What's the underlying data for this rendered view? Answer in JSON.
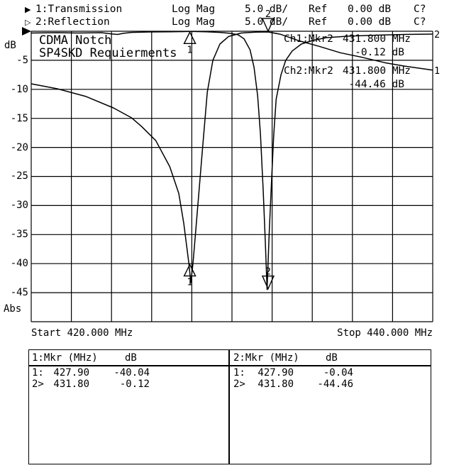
{
  "header": {
    "rows": [
      {
        "arrow": "▶",
        "label": "1:Transmission",
        "format": "Log Mag",
        "scale": "5.0 dB/",
        "ref_label": "Ref",
        "ref_value": "0.00 dB",
        "cal": "C?"
      },
      {
        "arrow": "▷",
        "label": "2:Reflection",
        "format": "Log Mag",
        "scale": "5.0 dB/",
        "ref_label": "Ref",
        "ref_value": "0.00 dB",
        "cal": "C?"
      }
    ]
  },
  "readouts": [
    {
      "channel_marker": "Ch1:Mkr2",
      "freq": "431.800 MHz",
      "value": "-0.12 dB"
    },
    {
      "channel_marker": "Ch2:Mkr2",
      "freq": "431.800 MHz",
      "value": "-44.46 dB"
    }
  ],
  "chart_data": {
    "type": "line",
    "title": "CDMA Notch",
    "subtitle": "SP4SKD Requierments",
    "grid": "on",
    "x_axis": {
      "min_mhz": 420,
      "max_mhz": 440,
      "divisions": 10,
      "start_label": "Start 420.000 MHz",
      "stop_label": "Stop 440.000 MHz"
    },
    "y_axis": {
      "max_db": 0,
      "min_db": -50,
      "db_per_div": 5,
      "divisions": 10,
      "unit_label": "dB",
      "bottom_label": "Abs",
      "tick_labels": [
        "-5",
        "-10",
        "-15",
        "-20",
        "-25",
        "-30",
        "-35",
        "-40",
        "-45"
      ]
    },
    "series": [
      {
        "name": "Transmission (Ch1)",
        "trace_number": "1",
        "points": [
          [
            420.0,
            -9.05
          ],
          [
            421.3,
            -9.9
          ],
          [
            422.7,
            -11.2
          ],
          [
            424.1,
            -13.2
          ],
          [
            425.0,
            -14.9
          ],
          [
            425.5,
            -16.4
          ],
          [
            426.2,
            -18.8
          ],
          [
            426.9,
            -23.3
          ],
          [
            427.35,
            -27.9
          ],
          [
            427.6,
            -33.1
          ],
          [
            427.85,
            -39.9
          ],
          [
            427.95,
            -43.3
          ],
          [
            428.06,
            -39.9
          ],
          [
            428.27,
            -31.3
          ],
          [
            428.5,
            -21.5
          ],
          [
            428.77,
            -10.5
          ],
          [
            429.05,
            -5.0
          ],
          [
            429.4,
            -2.2
          ],
          [
            429.83,
            -0.9
          ],
          [
            430.46,
            -0.3
          ],
          [
            431.17,
            -0.15
          ],
          [
            431.8,
            -0.12
          ],
          [
            432.4,
            -0.5
          ],
          [
            433.3,
            -1.6
          ],
          [
            434.35,
            -2.6
          ],
          [
            435.4,
            -3.7
          ],
          [
            436.5,
            -4.5
          ],
          [
            437.6,
            -5.4
          ],
          [
            438.6,
            -6.0
          ],
          [
            440.0,
            -6.7
          ]
        ]
      },
      {
        "name": "Reflection (Ch2)",
        "trace_number": "2",
        "points": [
          [
            420.0,
            -0.3
          ],
          [
            421.3,
            -0.25
          ],
          [
            422.3,
            -0.3
          ],
          [
            423.5,
            -0.25
          ],
          [
            424.0,
            -0.45
          ],
          [
            424.3,
            -0.55
          ],
          [
            424.6,
            -0.35
          ],
          [
            425.0,
            -0.2
          ],
          [
            425.9,
            -0.12
          ],
          [
            427.0,
            -0.1
          ],
          [
            427.9,
            -0.04
          ],
          [
            428.7,
            -0.1
          ],
          [
            429.4,
            -0.2
          ],
          [
            429.9,
            -0.35
          ],
          [
            430.3,
            -0.6
          ],
          [
            430.6,
            -1.3
          ],
          [
            430.9,
            -3.2
          ],
          [
            431.1,
            -6.2
          ],
          [
            431.28,
            -11.1
          ],
          [
            431.42,
            -17.8
          ],
          [
            431.56,
            -27.6
          ],
          [
            431.66,
            -36.2
          ],
          [
            431.75,
            -44.46
          ],
          [
            431.85,
            -35.0
          ],
          [
            431.98,
            -25.2
          ],
          [
            432.08,
            -17.8
          ],
          [
            432.2,
            -11.7
          ],
          [
            432.44,
            -7.5
          ],
          [
            432.68,
            -5.0
          ],
          [
            433.0,
            -3.4
          ],
          [
            433.46,
            -2.2
          ],
          [
            434.0,
            -1.6
          ],
          [
            434.7,
            -1.1
          ],
          [
            435.75,
            -0.85
          ],
          [
            437.2,
            -0.67
          ],
          [
            438.6,
            -0.55
          ],
          [
            440.0,
            -0.49
          ]
        ]
      }
    ],
    "markers": [
      {
        "channel": 2,
        "marker": "1",
        "mhz": 427.9,
        "db": -0.04,
        "symbol": "triangle-up",
        "label_position": "below"
      },
      {
        "channel": 1,
        "marker": "1",
        "mhz": 427.9,
        "db": -40.04,
        "symbol": "triangle-up",
        "label_position": "below"
      },
      {
        "channel": 1,
        "marker": "2",
        "mhz": 431.8,
        "db": -0.12,
        "symbol": "triangle-down",
        "label_position": "above"
      },
      {
        "channel": 2,
        "marker": "2",
        "mhz": 431.8,
        "db": -44.46,
        "symbol": "triangle-down",
        "label_position": "above"
      }
    ]
  },
  "marker_table": {
    "columns": [
      {
        "title": "1:Mkr (MHz)",
        "unit": "dB",
        "rows": [
          {
            "m": "1:",
            "f": "427.90",
            "v": "-40.04"
          },
          {
            "m": "2>",
            "f": "431.80",
            "v": "-0.12"
          }
        ]
      },
      {
        "title": "2:Mkr (MHz)",
        "unit": "dB",
        "rows": [
          {
            "m": "1:",
            "f": "427.90",
            "v": "-0.04"
          },
          {
            "m": "2>",
            "f": "431.80",
            "v": "-44.46"
          }
        ]
      }
    ]
  }
}
